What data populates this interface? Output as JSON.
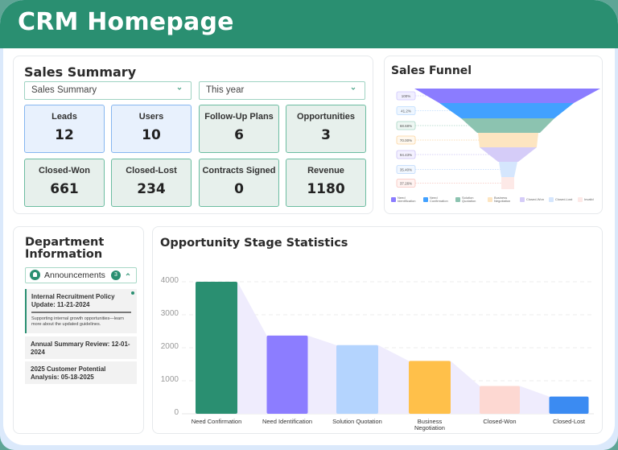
{
  "header": {
    "title": "CRM Homepage"
  },
  "colors": {
    "brand": "#2a8f71",
    "frame": "#dbe9fb"
  },
  "sales_summary": {
    "title": "Sales Summary",
    "type_select": {
      "value": "Sales Summary",
      "icon": "chevron-down-icon"
    },
    "period_select": {
      "value": "This year",
      "icon": "chevron-down-icon"
    },
    "stats": [
      {
        "label": "Leads",
        "value": "12",
        "style": "blue"
      },
      {
        "label": "Users",
        "value": "10",
        "style": "blue"
      },
      {
        "label": "Follow-Up Plans",
        "value": "6",
        "style": "green"
      },
      {
        "label": "Opportunities",
        "value": "3",
        "style": "green"
      },
      {
        "label": "Closed-Won",
        "value": "661",
        "style": "green"
      },
      {
        "label": "Closed-Lost",
        "value": "234",
        "style": "green"
      },
      {
        "label": "Contracts Signed",
        "value": "0",
        "style": "green"
      },
      {
        "label": "Revenue",
        "value": "1180",
        "style": "green"
      }
    ]
  },
  "sales_funnel": {
    "title": "Sales Funnel",
    "stages": [
      {
        "name": "Need Identification",
        "label": "100%",
        "color": "#8b7cff",
        "label_border": "#cfc8ff",
        "label_bg": "#f1efff"
      },
      {
        "name": "Need Confirmation",
        "label": "41.2%",
        "color": "#42a1ff",
        "label_border": "#bcdcff",
        "label_bg": "#eef6ff"
      },
      {
        "name": "Solution Quotation",
        "label": "68.68%",
        "color": "#8cc3b0",
        "label_border": "#a9d5c5",
        "label_bg": "#eef7f3"
      },
      {
        "name": "Business Negotiation",
        "label": "70.00%",
        "color": "#fde5c1",
        "label_border": "#fbd5a0",
        "label_bg": "#fff8ee"
      },
      {
        "name": "Closed-Won",
        "label": "94.43%",
        "color": "#d5ccf8",
        "label_border": "#cbc2f5",
        "label_bg": "#f4f1ff"
      },
      {
        "name": "Closed-Lost",
        "label": "35.40%",
        "color": "#d5e6fd",
        "label_border": "#bcd8fb",
        "label_bg": "#f1f7ff"
      },
      {
        "name": "Invalid",
        "label": "37.26%",
        "color": "#fde9e7",
        "label_border": "#f7c4bd",
        "label_bg": "#fff3f1"
      }
    ],
    "legend": [
      "Need Identification",
      "Need Confirmation",
      "Solution Quotation",
      "Business Negotiation",
      "Closed-Won",
      "Closed-Lost",
      "Invalid"
    ]
  },
  "department": {
    "title": "Department Information",
    "announcements": {
      "label": "Announcements",
      "count": "3",
      "icon": "bell-icon",
      "toggle_icon": "chevron-up-icon",
      "items": [
        {
          "title": "Internal Recruitment Policy Update: 11-21-2024",
          "description": "Supporting internal growth opportunities—learn more about the updated guidelines.",
          "unread": true
        },
        {
          "title": "Annual Summary Review: 12-01-2024"
        },
        {
          "title": "2025 Customer Potential Analysis: 05-18-2025"
        }
      ]
    }
  },
  "opportunity_chart": {
    "title": "Opportunity Stage Statistics"
  },
  "chart_data": [
    {
      "type": "bar",
      "title": "Opportunity Stage Statistics",
      "categories": [
        "Need Confirmation",
        "Need Identification",
        "Solution Quotation",
        "Business Negotiation",
        "Closed-Won",
        "Closed-Lost"
      ],
      "values": [
        4000,
        2370,
        2080,
        1600,
        840,
        520
      ],
      "colors": [
        "#2a8f71",
        "#8c7dff",
        "#b4d4fe",
        "#ffc04a",
        "#fdd8d2",
        "#3b8bf2"
      ],
      "yticks": [
        "0",
        "1000",
        "2000",
        "3000",
        "4000"
      ],
      "ylim": [
        0,
        4000
      ],
      "grid": true,
      "background_area": "#efecfd",
      "xlabel": "",
      "ylabel": ""
    },
    {
      "type": "funnel",
      "title": "Sales Funnel",
      "categories": [
        "Need Identification",
        "Need Confirmation",
        "Solution Quotation",
        "Business Negotiation",
        "Closed-Won",
        "Closed-Lost",
        "Invalid"
      ],
      "labels": [
        "100%",
        "41.2%",
        "68.68%",
        "70.00%",
        "94.43%",
        "35.40%",
        "37.26%"
      ],
      "legend_position": "bottom"
    }
  ]
}
